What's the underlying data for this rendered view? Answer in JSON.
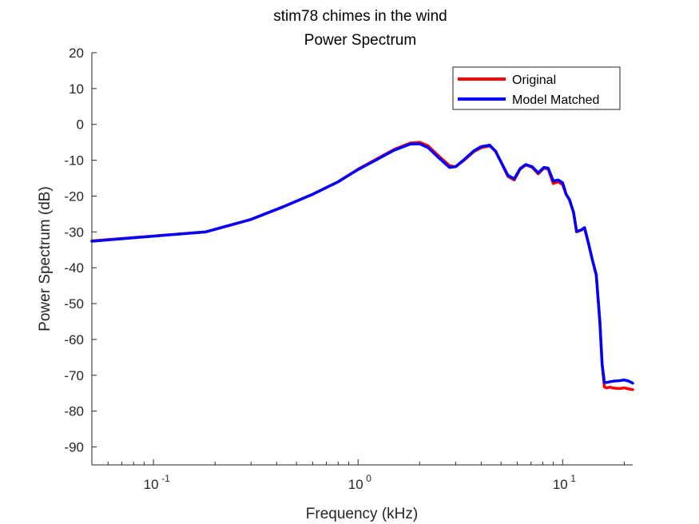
{
  "chart_data": {
    "type": "line",
    "title": [
      "stim78 chimes in the wind",
      "Power Spectrum"
    ],
    "xlabel": "Frequency (kHz)",
    "ylabel": "Power Spectrum (dB)",
    "xscale": "log",
    "xlim": [
      0.05,
      22
    ],
    "ylim": [
      -95,
      20
    ],
    "x_major_ticks": [
      {
        "value": 0.1,
        "base": "10",
        "exp": "-1"
      },
      {
        "value": 1,
        "base": "10",
        "exp": "0"
      },
      {
        "value": 10,
        "base": "10",
        "exp": "1"
      }
    ],
    "y_ticks": [
      20,
      10,
      0,
      -10,
      -20,
      -30,
      -40,
      -50,
      -60,
      -70,
      -80,
      -90
    ],
    "grid": false,
    "legend_placement": "top-right",
    "series": [
      {
        "name": "Original",
        "color": "#ff0000",
        "x": [
          0.05,
          0.18,
          0.3,
          0.43,
          0.6,
          0.8,
          1.0,
          1.2,
          1.5,
          1.8,
          2.0,
          2.2,
          2.5,
          2.8,
          3.0,
          3.3,
          3.7,
          4.0,
          4.4,
          4.7,
          5.0,
          5.4,
          5.8,
          6.2,
          6.6,
          7.1,
          7.6,
          8.1,
          8.5,
          9.0,
          9.5,
          10.0,
          10.4,
          10.8,
          11.3,
          11.7,
          12.3,
          12.8,
          13.4,
          14.0,
          14.6,
          15.2,
          15.6,
          16.0,
          16.5,
          17.0,
          17.5,
          18.0,
          19.0,
          20.0,
          21.0,
          22.0
        ],
        "y": [
          -32.5,
          -30,
          -26.5,
          -23,
          -19.5,
          -16,
          -12.5,
          -10,
          -7,
          -5.2,
          -5,
          -6,
          -9,
          -11.5,
          -11.8,
          -10,
          -7.5,
          -6.5,
          -6,
          -7.5,
          -10.5,
          -14.5,
          -15.5,
          -12.5,
          -11.3,
          -12,
          -13.8,
          -12.2,
          -12.5,
          -16.5,
          -16,
          -16.8,
          -19.5,
          -21,
          -24.5,
          -30,
          -29.5,
          -29,
          -33.5,
          -38,
          -42,
          -55,
          -67,
          -73.3,
          -73.5,
          -73.3,
          -73.5,
          -73.6,
          -73.7,
          -73.5,
          -73.8,
          -74
        ]
      },
      {
        "name": "Model Matched",
        "color": "#0000ff",
        "x": [
          0.05,
          0.18,
          0.3,
          0.43,
          0.6,
          0.8,
          1.0,
          1.2,
          1.5,
          1.8,
          2.0,
          2.2,
          2.5,
          2.8,
          3.0,
          3.3,
          3.7,
          4.0,
          4.4,
          4.7,
          5.0,
          5.4,
          5.8,
          6.2,
          6.6,
          7.1,
          7.6,
          8.1,
          8.5,
          9.0,
          9.5,
          10.0,
          10.4,
          10.8,
          11.3,
          11.7,
          12.3,
          12.8,
          13.4,
          14.0,
          14.6,
          15.2,
          15.6,
          16.0,
          16.5,
          17.0,
          17.5,
          18.0,
          19.0,
          20.0,
          21.0,
          22.0
        ],
        "y": [
          -32.6,
          -30,
          -26.5,
          -23,
          -19.5,
          -16,
          -12.6,
          -10.2,
          -7.2,
          -5.5,
          -5.4,
          -6.5,
          -9.5,
          -12,
          -11.8,
          -9.8,
          -7.3,
          -6.2,
          -5.8,
          -7.5,
          -10.5,
          -14.2,
          -15.2,
          -12.3,
          -11.2,
          -11.8,
          -13.5,
          -12,
          -12.2,
          -15.8,
          -15.5,
          -16.3,
          -19.5,
          -21,
          -24.5,
          -29.8,
          -29.5,
          -28.8,
          -33.3,
          -38,
          -42,
          -55,
          -67,
          -72,
          -72,
          -71.8,
          -71.7,
          -71.6,
          -71.5,
          -71.3,
          -71.6,
          -72.2
        ]
      }
    ]
  }
}
